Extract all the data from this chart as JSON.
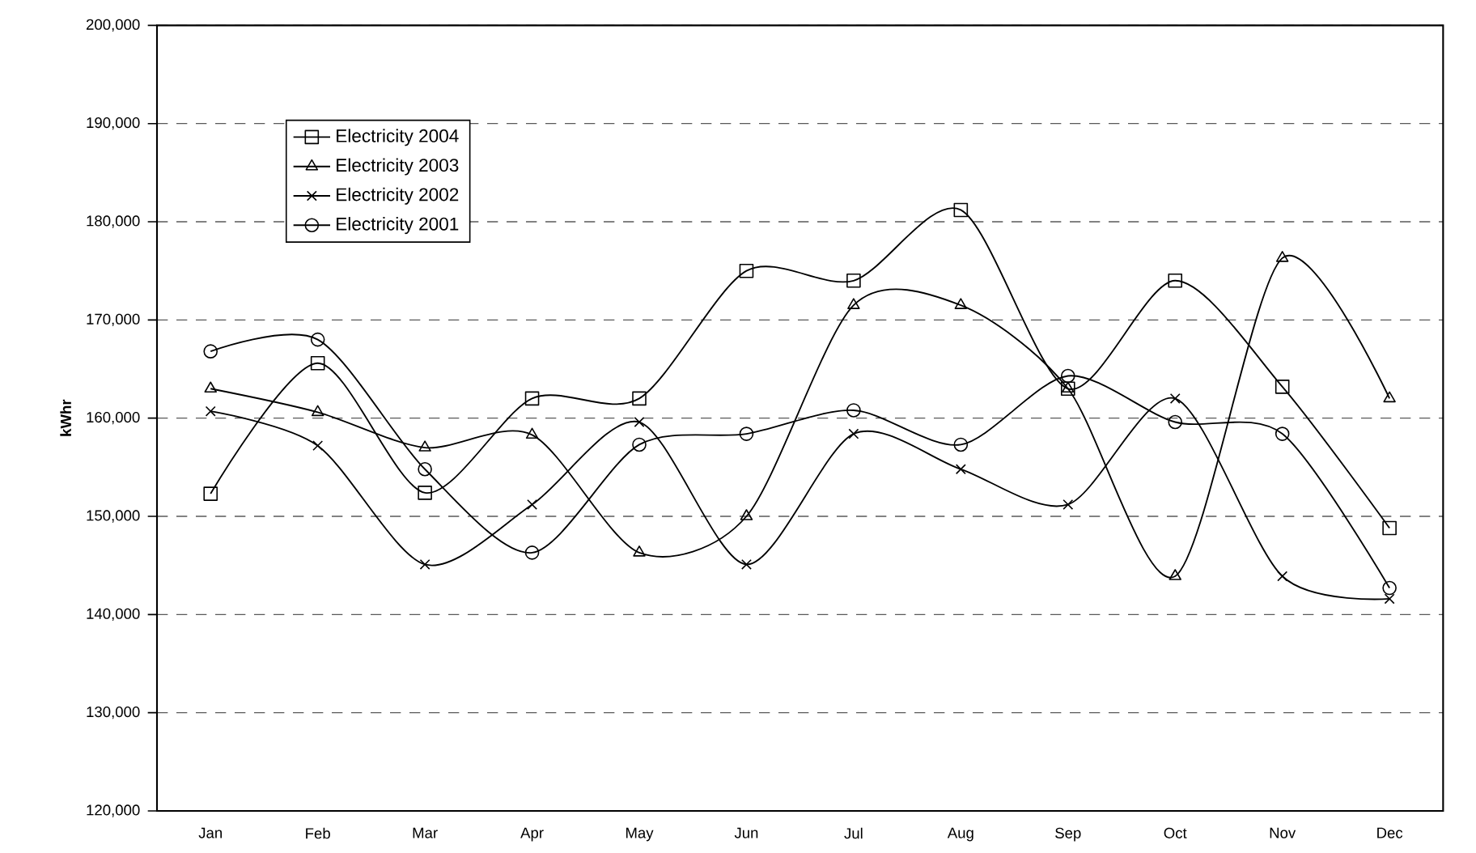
{
  "chart_data": {
    "type": "line",
    "ylabel": "kWhr",
    "categories": [
      "Jan",
      "Feb",
      "Mar",
      "Apr",
      "May",
      "Jun",
      "Jul",
      "Aug",
      "Sep",
      "Oct",
      "Nov",
      "Dec"
    ],
    "series": [
      {
        "name": "Electricity 2004",
        "color": "#000000",
        "marker": "square",
        "values": [
          152300,
          165600,
          152400,
          162000,
          162000,
          175000,
          174000,
          181200,
          163000,
          174000,
          163200,
          148800
        ]
      },
      {
        "name": "Electricity 2003",
        "color": "#000000",
        "marker": "triangle",
        "values": [
          163000,
          160600,
          157000,
          158300,
          146300,
          150000,
          171500,
          171500,
          163000,
          143900,
          176300,
          162000
        ]
      },
      {
        "name": "Electricity 2002",
        "color": "#000000",
        "marker": "cross",
        "values": [
          160700,
          157200,
          145100,
          151200,
          159600,
          145100,
          158400,
          154800,
          151200,
          162000,
          143900,
          141600
        ]
      },
      {
        "name": "Electricity 2001",
        "color": "#000000",
        "marker": "circle",
        "values": [
          166800,
          168000,
          154800,
          146300,
          157300,
          158400,
          160800,
          157300,
          164300,
          159600,
          158400,
          142700
        ]
      }
    ],
    "ylim": [
      120000,
      200000
    ],
    "yticks": [
      {
        "value": 120000,
        "label": "120,000"
      },
      {
        "value": 130000,
        "label": "130,000"
      },
      {
        "value": 140000,
        "label": "140,000"
      },
      {
        "value": 150000,
        "label": "150,000"
      },
      {
        "value": 160000,
        "label": "160,000"
      },
      {
        "value": 170000,
        "label": "170,000"
      },
      {
        "value": 180000,
        "label": "180,000"
      },
      {
        "value": 190000,
        "label": "190,000"
      },
      {
        "value": 200000,
        "label": "200,000"
      }
    ],
    "grid": "y",
    "legend": "top left",
    "line_style": "solid"
  }
}
